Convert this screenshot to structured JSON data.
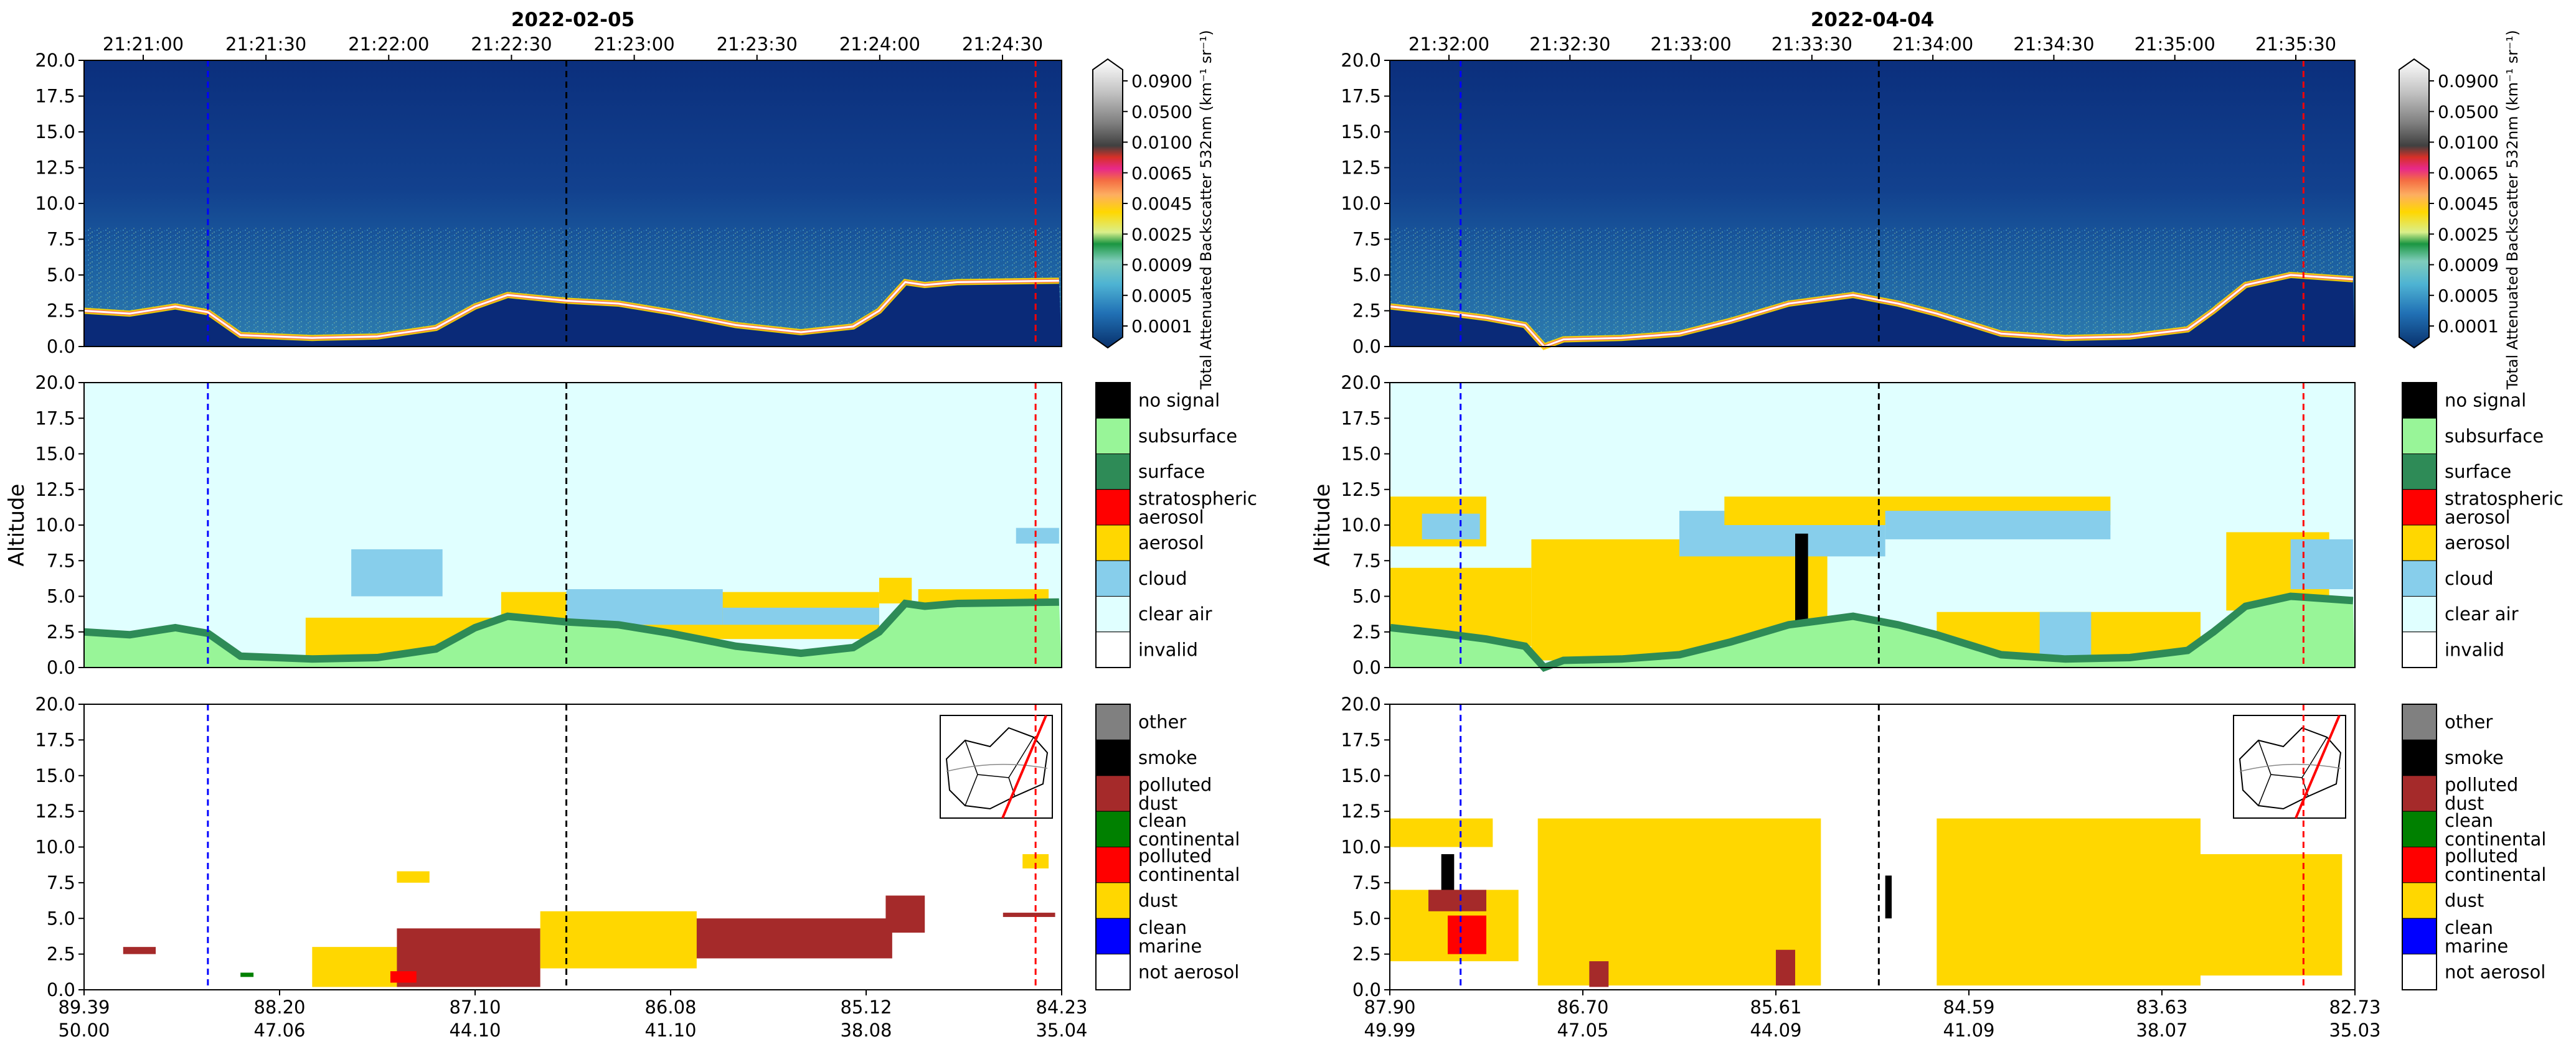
{
  "colors": {
    "no_signal": "#000000",
    "subsurface": "#98f598",
    "surface": "#2e8b57",
    "stratospheric_aerosol": "#ff0000",
    "aerosol": "#ffd700",
    "cloud": "#87ceeb",
    "clear_air": "#e0ffff",
    "invalid": "#ffffff",
    "other": "#808080",
    "smoke": "#000000",
    "polluted_dust": "#a52a2a",
    "clean_continental": "#008000",
    "polluted_continental": "#ff0000",
    "dust": "#ffd700",
    "clean_marine": "#0000ff",
    "not_aerosol": "#ffffff",
    "line_blue": "#0000ff",
    "line_black": "#000000",
    "line_red": "#ff0000",
    "track": "#ff0000"
  },
  "chart_data": [
    {
      "type": "heatmap",
      "title": "2022-02-05",
      "time_ticks": [
        "21:21:00",
        "21:21:30",
        "21:22:00",
        "21:22:30",
        "21:23:00",
        "21:23:30",
        "21:24:00",
        "21:24:30"
      ],
      "lat_ticks": [
        "89.39",
        "88.20",
        "87.10",
        "86.08",
        "85.12",
        "84.23"
      ],
      "lon_ticks": [
        "50.00",
        "47.06",
        "44.10",
        "41.10",
        "38.08",
        "35.04"
      ],
      "ylabel": "Altitude",
      "ylim": [
        0,
        20
      ],
      "y_ticks": [
        "20.0",
        "17.5",
        "15.0",
        "12.5",
        "10.0",
        "7.5",
        "5.0",
        "2.5",
        "0.0"
      ],
      "colorbar_label": "Total Attenuated Backscatter 532nm (km⁻¹ sr⁻¹)",
      "colorbar_ticks": [
        "0.0900",
        "0.0500",
        "0.0100",
        "0.0065",
        "0.0045",
        "0.0025",
        "0.0009",
        "0.0005",
        "0.0001"
      ],
      "vertical_lines": [
        {
          "lon": 48.1,
          "color": "blue"
        },
        {
          "lon": 42.6,
          "color": "black"
        },
        {
          "lon": 35.4,
          "color": "red"
        }
      ],
      "surface_profile": [
        [
          50.0,
          2.5
        ],
        [
          49.3,
          2.3
        ],
        [
          48.6,
          2.8
        ],
        [
          48.1,
          2.4
        ],
        [
          47.6,
          0.8
        ],
        [
          46.5,
          0.6
        ],
        [
          45.5,
          0.7
        ],
        [
          44.6,
          1.3
        ],
        [
          44.0,
          2.8
        ],
        [
          43.5,
          3.6
        ],
        [
          42.6,
          3.2
        ],
        [
          41.8,
          3.0
        ],
        [
          41.0,
          2.4
        ],
        [
          40.0,
          1.5
        ],
        [
          39.0,
          1.0
        ],
        [
          38.2,
          1.4
        ],
        [
          37.8,
          2.5
        ],
        [
          37.4,
          4.5
        ],
        [
          37.1,
          4.3
        ],
        [
          36.6,
          4.5
        ],
        [
          35.04,
          4.6
        ]
      ],
      "classification_regions": [
        {
          "class": "cloud",
          "from_lon": 45.9,
          "to_lon": 44.5,
          "from_km": 5.0,
          "to_km": 8.3
        },
        {
          "class": "aerosol",
          "from_lon": 46.6,
          "to_lon": 43.6,
          "from_km": 0.6,
          "to_km": 3.5
        },
        {
          "class": "aerosol",
          "from_lon": 43.6,
          "to_lon": 37.8,
          "from_km": 2.0,
          "to_km": 5.3
        },
        {
          "class": "cloud",
          "from_lon": 42.6,
          "to_lon": 40.2,
          "from_km": 3.0,
          "to_km": 5.5
        },
        {
          "class": "cloud",
          "from_lon": 40.2,
          "to_lon": 37.8,
          "from_km": 3.0,
          "to_km": 4.2
        },
        {
          "class": "aerosol",
          "from_lon": 37.2,
          "to_lon": 35.2,
          "from_km": 4.4,
          "to_km": 5.5
        },
        {
          "class": "cloud",
          "from_lon": 35.7,
          "to_lon": 35.04,
          "from_km": 8.7,
          "to_km": 9.8
        },
        {
          "class": "aerosol",
          "from_lon": 37.8,
          "to_lon": 37.3,
          "from_km": 4.5,
          "to_km": 6.3
        }
      ],
      "subtype_regions": [
        {
          "class": "polluted_dust",
          "from_lon": 49.4,
          "to_lon": 48.9,
          "from_km": 2.5,
          "to_km": 3.0
        },
        {
          "class": "clean_continental",
          "from_lon": 47.6,
          "to_lon": 47.4,
          "from_km": 0.9,
          "to_km": 1.2
        },
        {
          "class": "dust",
          "from_lon": 46.5,
          "to_lon": 43.6,
          "from_km": 0.2,
          "to_km": 3.0
        },
        {
          "class": "polluted_dust",
          "from_lon": 45.2,
          "to_lon": 43.0,
          "from_km": 0.2,
          "to_km": 4.3
        },
        {
          "class": "polluted_continental",
          "from_lon": 45.3,
          "to_lon": 44.9,
          "from_km": 0.5,
          "to_km": 1.3
        },
        {
          "class": "dust",
          "from_lon": 45.2,
          "to_lon": 44.7,
          "from_km": 7.5,
          "to_km": 8.3
        },
        {
          "class": "polluted_dust",
          "from_lon": 42.3,
          "to_lon": 37.6,
          "from_km": 2.2,
          "to_km": 5.0
        },
        {
          "class": "dust",
          "from_lon": 43.0,
          "to_lon": 40.6,
          "from_km": 1.5,
          "to_km": 5.5
        },
        {
          "class": "polluted_dust",
          "from_lon": 37.7,
          "to_lon": 37.1,
          "from_km": 4.0,
          "to_km": 6.6
        },
        {
          "class": "polluted_dust",
          "from_lon": 35.9,
          "to_lon": 35.1,
          "from_km": 5.1,
          "to_km": 5.4
        },
        {
          "class": "dust",
          "from_lon": 35.6,
          "to_lon": 35.2,
          "from_km": 8.5,
          "to_km": 9.5
        }
      ]
    },
    {
      "type": "heatmap",
      "title": "2022-04-04",
      "time_ticks": [
        "21:32:00",
        "21:32:30",
        "21:33:00",
        "21:33:30",
        "21:34:00",
        "21:34:30",
        "21:35:00",
        "21:35:30"
      ],
      "lat_ticks": [
        "87.90",
        "86.70",
        "85.61",
        "84.59",
        "83.63",
        "82.73"
      ],
      "lon_ticks": [
        "49.99",
        "47.05",
        "44.09",
        "41.09",
        "38.07",
        "35.03"
      ],
      "ylabel": "Altitude",
      "ylim": [
        0,
        20
      ],
      "y_ticks": [
        "20.0",
        "17.5",
        "15.0",
        "12.5",
        "10.0",
        "7.5",
        "5.0",
        "2.5",
        "0.0"
      ],
      "colorbar_label": "Total Attenuated Backscatter 532nm (km⁻¹ sr⁻¹)",
      "colorbar_ticks": [
        "0.0900",
        "0.0500",
        "0.0100",
        "0.0065",
        "0.0045",
        "0.0025",
        "0.0009",
        "0.0005",
        "0.0001"
      ],
      "vertical_lines": [
        {
          "lon": 48.9,
          "color": "blue"
        },
        {
          "lon": 42.4,
          "color": "black"
        },
        {
          "lon": 35.8,
          "color": "red"
        }
      ],
      "surface_profile": [
        [
          49.99,
          2.8
        ],
        [
          49.2,
          2.4
        ],
        [
          48.5,
          2.0
        ],
        [
          47.9,
          1.5
        ],
        [
          47.6,
          0.0
        ],
        [
          47.3,
          0.5
        ],
        [
          46.4,
          0.6
        ],
        [
          45.5,
          0.9
        ],
        [
          44.7,
          1.8
        ],
        [
          43.8,
          3.0
        ],
        [
          42.8,
          3.6
        ],
        [
          42.1,
          3.0
        ],
        [
          41.5,
          2.3
        ],
        [
          40.5,
          0.9
        ],
        [
          39.5,
          0.6
        ],
        [
          38.5,
          0.7
        ],
        [
          37.6,
          1.2
        ],
        [
          37.2,
          2.5
        ],
        [
          36.7,
          4.3
        ],
        [
          36.0,
          5.0
        ],
        [
          35.03,
          4.7
        ]
      ],
      "classification_regions": [
        {
          "class": "aerosol",
          "from_lon": 49.99,
          "to_lon": 48.5,
          "from_km": 8.5,
          "to_km": 12.0
        },
        {
          "class": "cloud",
          "from_lon": 49.5,
          "to_lon": 48.6,
          "from_km": 9.0,
          "to_km": 10.8
        },
        {
          "class": "aerosol",
          "from_lon": 49.99,
          "to_lon": 47.8,
          "from_km": 1.5,
          "to_km": 7.0
        },
        {
          "class": "aerosol",
          "from_lon": 47.8,
          "to_lon": 43.2,
          "from_km": 0.5,
          "to_km": 9.0
        },
        {
          "class": "cloud",
          "from_lon": 45.5,
          "to_lon": 42.3,
          "from_km": 7.8,
          "to_km": 11.0
        },
        {
          "class": "aerosol",
          "from_lon": 44.8,
          "to_lon": 38.8,
          "from_km": 10.0,
          "to_km": 12.0
        },
        {
          "class": "cloud",
          "from_lon": 42.3,
          "to_lon": 38.8,
          "from_km": 9.0,
          "to_km": 11.0
        },
        {
          "class": "aerosol",
          "from_lon": 41.5,
          "to_lon": 37.4,
          "from_km": 0.5,
          "to_km": 3.9
        },
        {
          "class": "cloud",
          "from_lon": 39.9,
          "to_lon": 39.1,
          "from_km": 0.5,
          "to_km": 3.9
        },
        {
          "class": "no_signal",
          "from_lon": 43.7,
          "to_lon": 43.5,
          "from_km": 0.0,
          "to_km": 9.4
        },
        {
          "class": "aerosol",
          "from_lon": 37.0,
          "to_lon": 35.4,
          "from_km": 4.0,
          "to_km": 9.5
        },
        {
          "class": "cloud",
          "from_lon": 36.0,
          "to_lon": 35.03,
          "from_km": 5.5,
          "to_km": 9.0
        }
      ],
      "subtype_regions": [
        {
          "class": "dust",
          "from_lon": 49.99,
          "to_lon": 48.4,
          "from_km": 10.0,
          "to_km": 12.0
        },
        {
          "class": "dust",
          "from_lon": 49.99,
          "to_lon": 48.0,
          "from_km": 2.0,
          "to_km": 7.0
        },
        {
          "class": "smoke",
          "from_lon": 49.2,
          "to_lon": 49.0,
          "from_km": 6.8,
          "to_km": 9.5
        },
        {
          "class": "polluted_dust",
          "from_lon": 49.4,
          "to_lon": 48.5,
          "from_km": 5.5,
          "to_km": 7.0
        },
        {
          "class": "polluted_continental",
          "from_lon": 49.1,
          "to_lon": 48.5,
          "from_km": 2.5,
          "to_km": 5.2
        },
        {
          "class": "dust",
          "from_lon": 47.7,
          "to_lon": 43.3,
          "from_km": 0.3,
          "to_km": 12.0
        },
        {
          "class": "polluted_dust",
          "from_lon": 46.9,
          "to_lon": 46.6,
          "from_km": 0.2,
          "to_km": 2.0
        },
        {
          "class": "polluted_dust",
          "from_lon": 44.0,
          "to_lon": 43.7,
          "from_km": 0.3,
          "to_km": 2.8
        },
        {
          "class": "smoke",
          "from_lon": 42.3,
          "to_lon": 42.2,
          "from_km": 5.0,
          "to_km": 8.0
        },
        {
          "class": "dust",
          "from_lon": 41.5,
          "to_lon": 37.4,
          "from_km": 0.3,
          "to_km": 12.0
        },
        {
          "class": "polluted_dust",
          "from_lon": 37.0,
          "to_lon": 36.0,
          "from_km": 5.5,
          "to_km": 8.7
        },
        {
          "class": "dust",
          "from_lon": 37.4,
          "to_lon": 35.2,
          "from_km": 1.0,
          "to_km": 9.5
        }
      ]
    }
  ],
  "legends": {
    "classification": [
      "no signal",
      "subsurface",
      "surface",
      "stratospheric aerosol",
      "aerosol",
      "cloud",
      "clear air",
      "invalid"
    ],
    "subtype": [
      "other",
      "smoke",
      "polluted dust",
      "clean continental",
      "polluted continental",
      "dust",
      "clean marine",
      "not aerosol"
    ]
  }
}
